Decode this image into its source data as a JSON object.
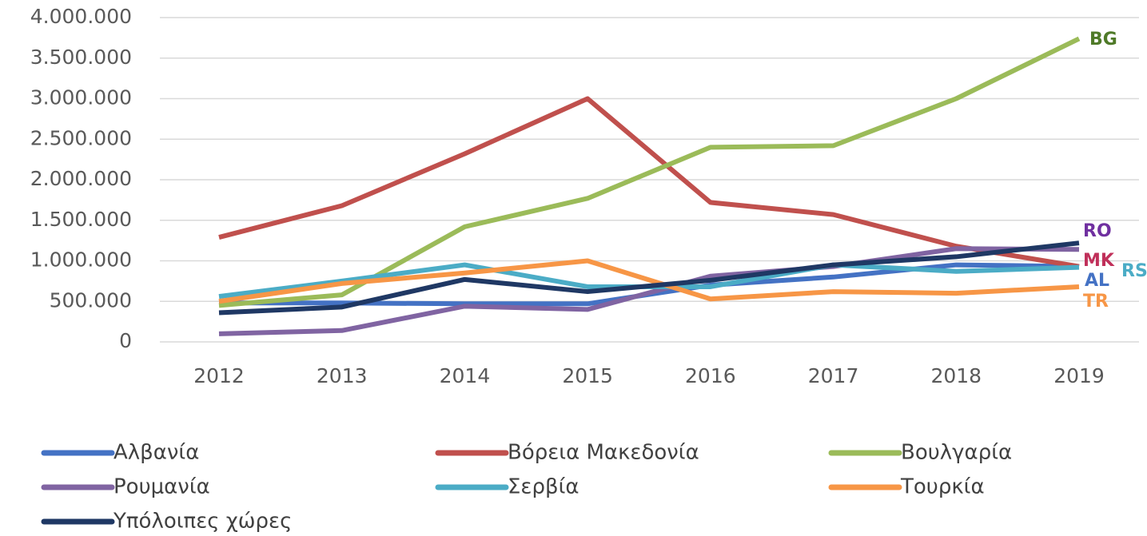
{
  "chart_data": {
    "type": "line",
    "categories": [
      "2012",
      "2013",
      "2014",
      "2015",
      "2016",
      "2017",
      "2018",
      "2019"
    ],
    "series": [
      {
        "name": "Αλβανία",
        "color": "#4472c4",
        "values": [
          480000,
          480000,
          470000,
          470000,
          700000,
          800000,
          950000,
          930000
        ]
      },
      {
        "name": "Βόρεια Μακεδονία",
        "color": "#c0504d",
        "values": [
          1290000,
          1680000,
          2320000,
          3000000,
          1720000,
          1570000,
          1180000,
          930000
        ]
      },
      {
        "name": "Βουλγαρία",
        "color": "#9bbb59",
        "values": [
          450000,
          580000,
          1420000,
          1770000,
          2400000,
          2420000,
          3000000,
          3740000
        ]
      },
      {
        "name": "Ρουμανία",
        "color": "#8064a2",
        "values": [
          100000,
          140000,
          440000,
          400000,
          810000,
          930000,
          1150000,
          1140000
        ]
      },
      {
        "name": "Σερβία",
        "color": "#4bacc6",
        "values": [
          560000,
          750000,
          950000,
          680000,
          680000,
          950000,
          870000,
          920000
        ]
      },
      {
        "name": "Τουρκία",
        "color": "#f79646",
        "values": [
          500000,
          720000,
          850000,
          1000000,
          530000,
          620000,
          600000,
          680000
        ]
      },
      {
        "name": "Υπόλοιπες χώρες",
        "color": "#1f3864",
        "values": [
          360000,
          430000,
          770000,
          620000,
          760000,
          950000,
          1050000,
          1220000
        ]
      }
    ],
    "ylim": [
      0,
      4000000
    ],
    "yticks": [
      0,
      {
        "value": 500000,
        "label": "500.000"
      },
      {
        "value": 1000000,
        "label": "1.000.000"
      },
      {
        "value": 1500000,
        "label": "1.500.000"
      },
      {
        "value": 2000000,
        "label": "2.000.000"
      },
      {
        "value": 2500000,
        "label": "2.500.000"
      },
      {
        "value": 3000000,
        "label": "3.000.000"
      },
      {
        "value": 3500000,
        "label": "3.500.000"
      },
      {
        "value": 4000000,
        "label": "4.000.000"
      }
    ],
    "grid": true,
    "legend": "bottom",
    "annotations": [
      {
        "text": "BG",
        "color": "#4f7a28"
      },
      {
        "text": "RO",
        "color": "#7030a0"
      },
      {
        "text": "MK",
        "color": "#c0305a"
      },
      {
        "text": "RS",
        "color": "#4bacc6"
      },
      {
        "text": "AL",
        "color": "#4472c4"
      },
      {
        "text": "TR",
        "color": "#f79646"
      }
    ]
  }
}
